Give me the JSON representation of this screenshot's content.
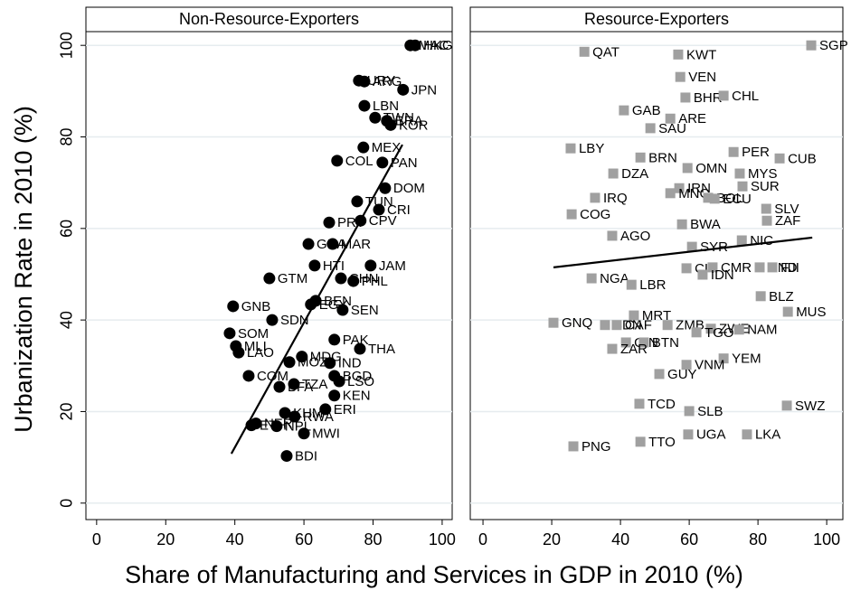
{
  "shared": {
    "xlabel": "Share of Manufacturing and Services in GDP in 2010 (%)",
    "ylabel": "Urbanization Rate in 2010 (%)"
  },
  "chart_data": [
    {
      "type": "scatter",
      "title": "Non-Resource-Exporters",
      "marker": "circle",
      "color": "#000000",
      "xlim": [
        -3.1,
        102.9
      ],
      "ylim": [
        -3.6,
        103
      ],
      "xticks": [
        0,
        20,
        40,
        60,
        80,
        100
      ],
      "yticks": [
        0,
        20,
        40,
        60,
        80,
        100
      ],
      "grid": true,
      "labels": [
        "MAC",
        "HKG",
        "URY",
        "ARG",
        "JPN",
        "LBN",
        "TWN",
        "BRA",
        "KOR",
        "MEX",
        "COL",
        "PAN",
        "DOM",
        "TUN",
        "CRI",
        "PRY",
        "CPV",
        "GHA",
        "MAR",
        "HTI",
        "JAM",
        "GTM",
        "CHN",
        "PHL",
        "GNB",
        "BEN",
        "EGY",
        "SEN",
        "SDN",
        "SOM",
        "PAK",
        "THA",
        "MLI",
        "LAO",
        "MDG",
        "IND",
        "MOZ",
        "COM",
        "BGD",
        "LSO",
        "TZA",
        "BFA",
        "KEN",
        "ERI",
        "KHM",
        "RWA",
        "NER",
        "ETH",
        "NPL",
        "MWI",
        "BDI"
      ],
      "x": [
        90.8,
        92.2,
        75.9,
        77.5,
        88.7,
        77.5,
        80.6,
        84,
        85.1,
        77.2,
        69.6,
        82.7,
        83.5,
        75.4,
        81.7,
        67.3,
        76.4,
        61.3,
        68.3,
        63.1,
        79.3,
        50,
        70.7,
        74.3,
        39.5,
        63.4,
        62,
        71.2,
        50.8,
        38.5,
        68.8,
        76.2,
        40.3,
        41.1,
        59.4,
        67.5,
        55.8,
        44,
        68.8,
        70.2,
        57.1,
        52.9,
        68.8,
        66.2,
        54.5,
        57.3,
        46.1,
        44.8,
        52.1,
        60,
        55
      ],
      "y": [
        100,
        100,
        92.3,
        92.1,
        90.3,
        86.8,
        84.2,
        83.5,
        82.6,
        77.7,
        74.8,
        74.4,
        68.8,
        65.9,
        64.1,
        61.3,
        61.7,
        56.6,
        56.6,
        51.9,
        51.9,
        49.1,
        49.1,
        48.5,
        43,
        44.2,
        43.4,
        42.2,
        40,
        37.1,
        35.7,
        33.7,
        34.3,
        32.9,
        32,
        30.6,
        30.8,
        27.8,
        27.8,
        26.6,
        26,
        25.4,
        23.5,
        20.5,
        19.7,
        18.9,
        17.4,
        17,
        16.8,
        15.2,
        10.3
      ],
      "fit": {
        "x": [
          39,
          88.5
        ],
        "y": [
          10.8,
          78.3
        ]
      }
    },
    {
      "type": "scatter",
      "title": "Resource-Exporters",
      "marker": "square",
      "color": "#a0a0a0",
      "xlim": [
        -3.7,
        104.7
      ],
      "ylim": [
        -3.6,
        103
      ],
      "xticks": [
        0,
        20,
        40,
        60,
        80,
        100
      ],
      "yticks": [
        0,
        20,
        40,
        60,
        80,
        100
      ],
      "grid": true,
      "labels": [
        "SGP",
        "QAT",
        "KWT",
        "VEN",
        "BHR",
        "CHL",
        "GAB",
        "ARE",
        "SAU",
        "LBY",
        "BRN",
        "PER",
        "CUB",
        "OMN",
        "MYS",
        "DZA",
        "SUR",
        "IRN",
        "MNG",
        "BOL",
        "ECU",
        "IRQ",
        "SLV",
        "COG",
        "ZAF",
        "BWA",
        "AGO",
        "NIC",
        "SYR",
        "CIV",
        "CMR",
        "HND",
        "FJI",
        "IDN",
        "NGA",
        "LBR",
        "BLZ",
        "MUS",
        "MRT",
        "GNQ",
        "SDN",
        "CAF",
        "ZMB",
        "ZWE",
        "TGO",
        "NAM",
        "GIN",
        "BTN",
        "ZAR",
        "YEM",
        "VNM",
        "GUY",
        "TCD",
        "SLB",
        "SWZ",
        "UGA",
        "LKA",
        "TTO",
        "PNG"
      ],
      "x": [
        95.5,
        29.5,
        56.8,
        57.4,
        58.9,
        70,
        41,
        54.5,
        48.7,
        25.5,
        45.8,
        72.9,
        86.3,
        59.5,
        74.7,
        37.9,
        75.5,
        57.1,
        54.5,
        65.5,
        67.4,
        32.6,
        82.4,
        25.8,
        82.6,
        57.9,
        37.6,
        75.3,
        60.8,
        59.2,
        66.8,
        80.5,
        84.2,
        63.9,
        31.6,
        43.2,
        80.8,
        88.7,
        43.9,
        20.5,
        35.5,
        38.9,
        53.7,
        66.3,
        62.1,
        74.5,
        41.6,
        46.8,
        37.6,
        70,
        59.2,
        51.3,
        45.5,
        60,
        88.4,
        59.7,
        76.8,
        45.8,
        26.3
      ],
      "y": [
        100,
        98.6,
        98,
        93.1,
        88.6,
        89,
        85.8,
        84,
        81.9,
        77.5,
        75.5,
        76.7,
        75.3,
        73.2,
        72,
        72,
        69.2,
        68.8,
        67.7,
        66.7,
        66.5,
        66.7,
        64.3,
        63.1,
        61.7,
        60.9,
        58.4,
        57.4,
        56,
        51.3,
        51.5,
        51.5,
        51.5,
        49.9,
        49.1,
        47.7,
        45.2,
        41.8,
        41,
        39.4,
        38.9,
        38.9,
        38.9,
        38.1,
        37.3,
        37.9,
        35.1,
        35.1,
        33.7,
        31.6,
        30.2,
        28.2,
        21.7,
        20.1,
        21.3,
        15,
        15,
        13.4,
        12.4
      ],
      "fit": {
        "x": [
          20.5,
          95.8
        ],
        "y": [
          51.5,
          58
        ]
      }
    }
  ]
}
